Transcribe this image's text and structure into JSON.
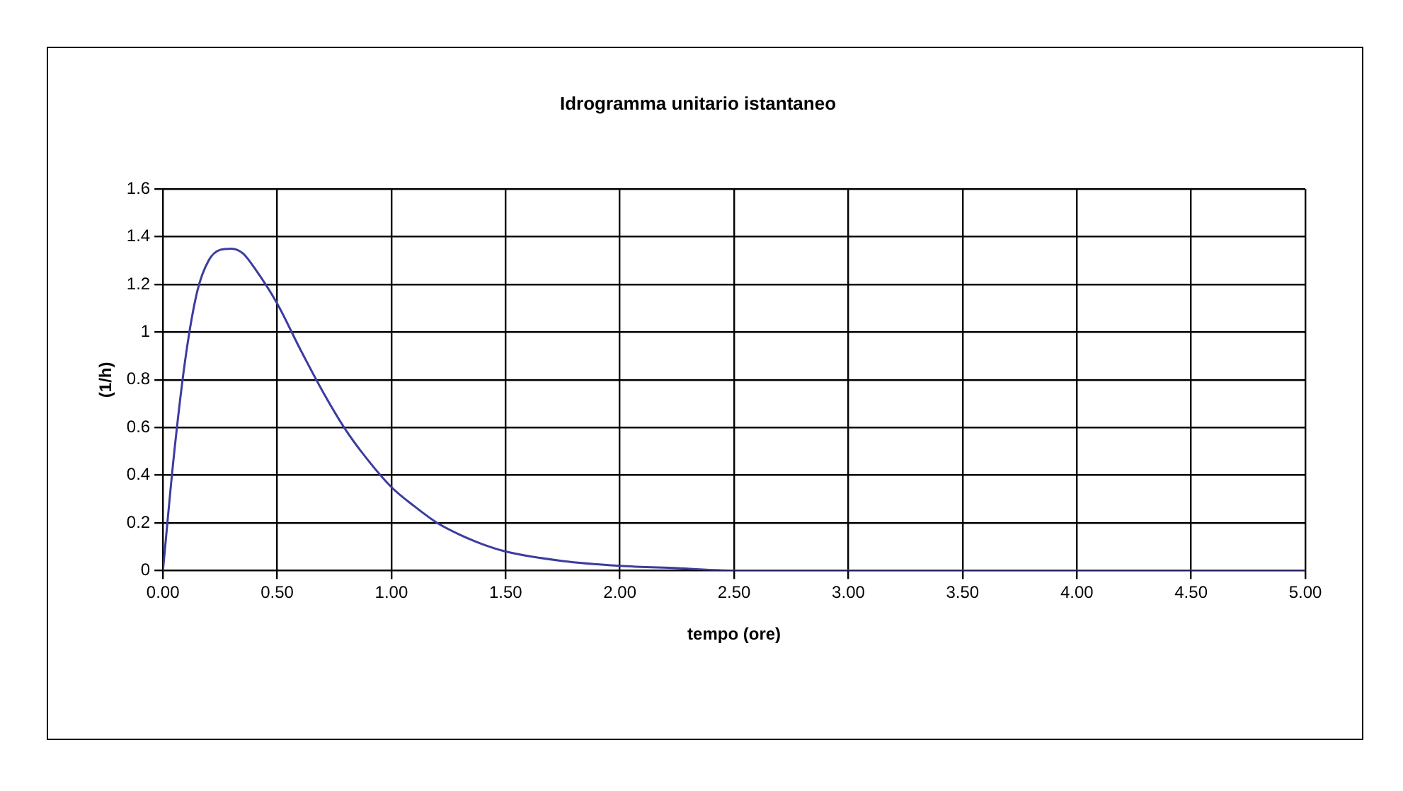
{
  "chart_data": {
    "type": "line",
    "title": "Idrogramma unitario istantaneo",
    "xlabel": "tempo (ore)",
    "ylabel": "(1/h)",
    "x": [
      0,
      0.05,
      0.1,
      0.15,
      0.2,
      0.25,
      0.3,
      0.35,
      0.4,
      0.5,
      0.6,
      0.7,
      0.8,
      0.9,
      1.0,
      1.1,
      1.2,
      1.3,
      1.4,
      1.5,
      1.75,
      2.0,
      2.25,
      2.5,
      3.0,
      3.5,
      4.0,
      4.5,
      5.0
    ],
    "series": [
      {
        "color": "#3c3ca0",
        "values": [
          0,
          0.5,
          0.9,
          1.17,
          1.3,
          1.345,
          1.35,
          1.33,
          1.27,
          1.12,
          0.93,
          0.75,
          0.59,
          0.46,
          0.35,
          0.27,
          0.2,
          0.15,
          0.11,
          0.08,
          0.04,
          0.02,
          0.01,
          0,
          0,
          0,
          0,
          0,
          0
        ]
      }
    ],
    "xlim": [
      0,
      5
    ],
    "xticks": [
      {
        "value": 0,
        "label": "0.00"
      },
      {
        "value": 0.5,
        "label": "0.50"
      },
      {
        "value": 1,
        "label": "1.00"
      },
      {
        "value": 1.5,
        "label": "1.50"
      },
      {
        "value": 2,
        "label": "2.00"
      },
      {
        "value": 2.5,
        "label": "2.50"
      },
      {
        "value": 3,
        "label": "3.00"
      },
      {
        "value": 3.5,
        "label": "3.50"
      },
      {
        "value": 4,
        "label": "4.00"
      },
      {
        "value": 4.5,
        "label": "4.50"
      },
      {
        "value": 5,
        "label": "5.00"
      }
    ],
    "ylim": [
      0,
      1.6
    ],
    "yticks": [
      0,
      0.2,
      0.4,
      0.6,
      0.8,
      1,
      1.2,
      1.4,
      1.6
    ],
    "grid": true,
    "legend": false,
    "marker": "none",
    "line_style": "solid"
  }
}
